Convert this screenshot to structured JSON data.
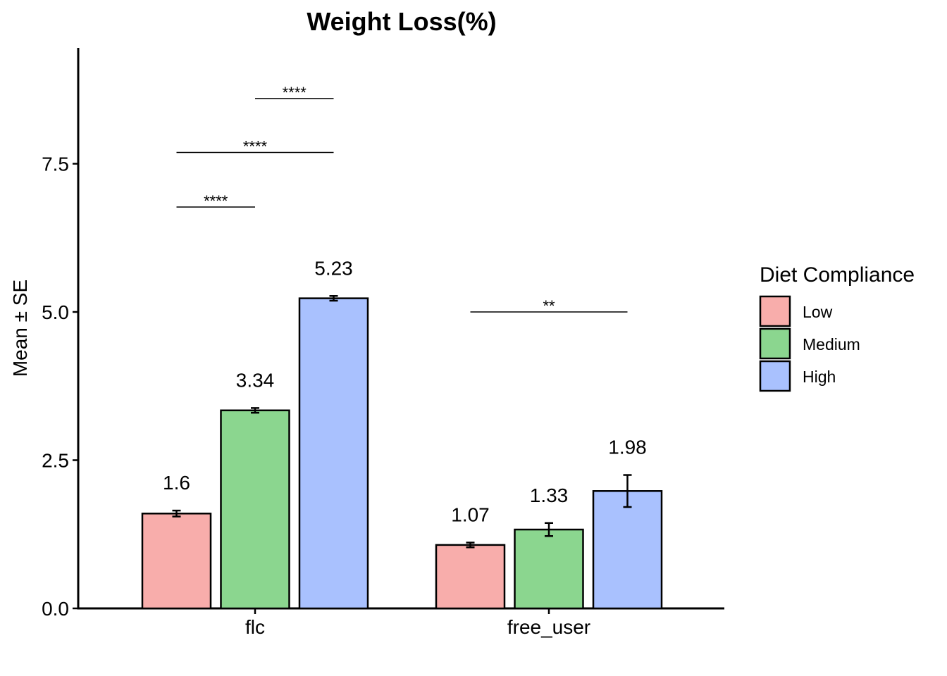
{
  "chart_data": {
    "type": "bar",
    "title": "Weight Loss(%)",
    "xlabel": "",
    "ylabel": "Mean ± SE",
    "ylim": [
      0,
      9.5
    ],
    "yticks": [
      0.0,
      2.5,
      5.0,
      7.5
    ],
    "ytick_labels": [
      "0.0",
      "2.5",
      "5.0",
      "7.5"
    ],
    "categories": [
      "flc",
      "free_user"
    ],
    "series": [
      {
        "name": "Low",
        "color": "#F8ADAB",
        "values": [
          1.6,
          1.07
        ],
        "se": [
          0.05,
          0.04
        ],
        "labels": [
          "1.6",
          "1.07"
        ]
      },
      {
        "name": "Medium",
        "color": "#8BD68F",
        "values": [
          3.34,
          1.33
        ],
        "se": [
          0.04,
          0.11
        ],
        "labels": [
          "3.34",
          "1.33"
        ]
      },
      {
        "name": "High",
        "color": "#A9C1FE",
        "values": [
          5.23,
          1.98
        ],
        "se": [
          0.04,
          0.27
        ],
        "labels": [
          "5.23",
          "1.98"
        ]
      }
    ],
    "significance": [
      {
        "category": "flc",
        "from": "Low",
        "to": "Medium",
        "y": 6.77,
        "label": "****"
      },
      {
        "category": "flc",
        "from": "Low",
        "to": "High",
        "y": 7.69,
        "label": "****"
      },
      {
        "category": "flc",
        "from": "Medium",
        "to": "High",
        "y": 8.6,
        "label": "****"
      },
      {
        "category": "free_user",
        "from": "Low",
        "to": "High",
        "y": 5.0,
        "label": "**"
      }
    ],
    "legend": {
      "title": "Diet Compliance",
      "placement": "right"
    }
  }
}
